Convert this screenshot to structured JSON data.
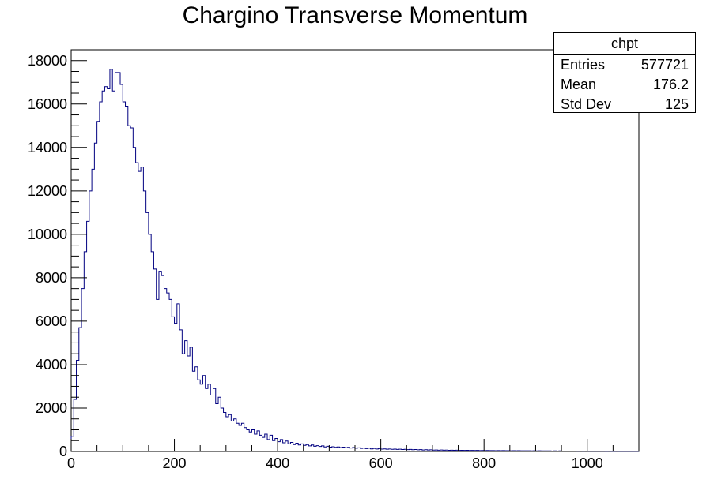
{
  "chart_data": {
    "type": "bar",
    "title": "Chargino Transverse Momentum",
    "xlim": [
      0,
      1100
    ],
    "ylim": [
      0,
      18500
    ],
    "x_ticks": [
      0,
      200,
      400,
      600,
      800,
      1000
    ],
    "y_ticks": [
      0,
      2000,
      4000,
      6000,
      8000,
      10000,
      12000,
      14000,
      16000,
      18000
    ],
    "bin_width": 5,
    "line_color": "#000080",
    "values": [
      700,
      2400,
      4200,
      5700,
      7500,
      9200,
      10600,
      12000,
      13000,
      14200,
      15200,
      16100,
      16600,
      16800,
      16700,
      17600,
      16600,
      17450,
      17450,
      16900,
      16100,
      15900,
      15000,
      14900,
      14000,
      13300,
      12900,
      13100,
      12000,
      11000,
      10000,
      9200,
      8400,
      7000,
      8300,
      8100,
      7500,
      7300,
      7000,
      6200,
      5900,
      6800,
      5600,
      4500,
      5100,
      4400,
      4800,
      3700,
      3900,
      3300,
      3100,
      3500,
      2900,
      3100,
      2600,
      2900,
      2200,
      2500,
      2000,
      1800,
      1600,
      1700,
      1400,
      1500,
      1300,
      1200,
      1300,
      1100,
      1000,
      900,
      1000,
      800,
      950,
      750,
      650,
      800,
      550,
      750,
      500,
      600,
      450,
      550,
      400,
      480,
      350,
      420,
      320,
      380,
      300,
      350,
      280,
      320,
      260,
      300,
      240,
      270,
      230,
      260,
      210,
      240,
      200,
      220,
      190,
      210,
      180,
      200,
      170,
      190,
      160,
      180,
      150,
      170,
      140,
      160,
      130,
      150,
      120,
      140,
      115,
      130,
      110,
      120,
      105,
      115,
      100,
      110,
      95,
      105,
      90,
      100,
      85,
      95,
      80,
      90,
      75,
      85,
      70,
      80,
      70,
      75,
      65,
      70,
      60,
      70,
      60,
      65,
      55,
      60,
      55,
      60,
      50,
      55,
      50,
      55,
      45,
      50,
      45,
      50,
      40,
      45,
      40,
      45,
      40,
      40,
      35,
      40,
      35,
      40,
      35,
      35,
      30,
      35,
      30,
      35,
      30,
      30,
      30,
      30,
      25,
      30,
      25,
      30,
      25,
      25,
      25,
      25,
      20,
      25,
      20,
      25,
      20,
      20,
      20,
      20,
      20,
      20,
      15,
      20,
      15,
      20,
      15,
      15,
      15,
      15,
      15,
      15,
      15,
      10,
      15,
      10,
      10,
      15,
      10,
      10,
      10,
      10,
      10,
      10,
      10,
      10
    ]
  },
  "stats": {
    "name": "chpt",
    "rows": [
      {
        "label": "Entries",
        "value": "577721"
      },
      {
        "label": "Mean",
        "value": "176.2"
      },
      {
        "label": "Std Dev",
        "value": "125"
      }
    ]
  }
}
